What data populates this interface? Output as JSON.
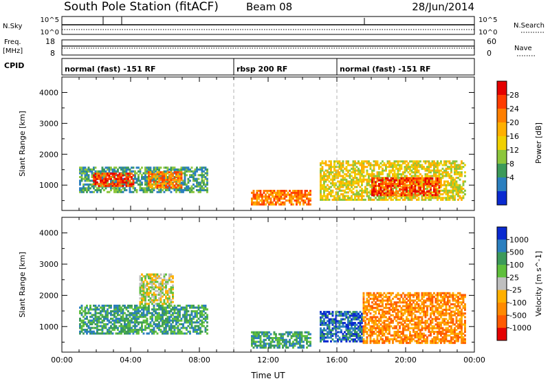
{
  "header": {
    "station": "South Pole Station (fitACF)",
    "beam": "Beam 08",
    "date": "28/Jun/2014"
  },
  "top_panels": {
    "nsky_label": "N.Sky",
    "nsearch_label": "N.Search",
    "nsky_ticks": [
      "10^5",
      "10^0"
    ],
    "nsearch_ticks": [
      "10^5",
      "10^0"
    ],
    "freq_label": "Freq.",
    "freq_unit": "[MHz]",
    "freq_ticks": [
      "18",
      "8"
    ],
    "nave_label": "Nave",
    "nave_ticks": [
      "60",
      "0"
    ],
    "cpid_label": "CPID",
    "cpid_segments": [
      {
        "label": "normal (fast) -151 RF",
        "start_h": 0,
        "end_h": 10
      },
      {
        "label": "rbsp 200 RF",
        "start_h": 10,
        "end_h": 16
      },
      {
        "label": "normal (fast) -151 RF",
        "start_h": 16,
        "end_h": 24
      }
    ]
  },
  "chart_data": [
    {
      "type": "heatmap",
      "name": "power",
      "ylabel": "Slant Range [km]",
      "xlabel": "",
      "colorbar_label": "Power [dB]",
      "colorbar_ticks": [
        "28",
        "24",
        "20",
        "16",
        "12",
        "8",
        "4"
      ],
      "colorbar_colors": [
        "#e40000",
        "#ff3c00",
        "#ff7f00",
        "#ffb000",
        "#f0d000",
        "#8cc63c",
        "#3c9a5a",
        "#2b7fbf",
        "#0a2ad0"
      ],
      "ylim": [
        180,
        4500
      ],
      "yticks": [
        "1000",
        "2000",
        "3000",
        "4000"
      ],
      "xlim": [
        0,
        24
      ],
      "vlines_h": [
        10,
        16
      ],
      "regions": [
        {
          "t0": 1.0,
          "t1": 8.5,
          "r0": 750,
          "r1": 1600,
          "level": 6
        },
        {
          "t0": 1.8,
          "t1": 4.2,
          "r0": 950,
          "r1": 1400,
          "level": 1
        },
        {
          "t0": 5.0,
          "t1": 7.0,
          "r0": 900,
          "r1": 1450,
          "level": 2
        },
        {
          "t0": 11.0,
          "t1": 14.5,
          "r0": 350,
          "r1": 850,
          "level": 2
        },
        {
          "t0": 15.0,
          "t1": 23.5,
          "r0": 500,
          "r1": 1800,
          "level": 4
        },
        {
          "t0": 18.0,
          "t1": 22.0,
          "r0": 650,
          "r1": 1250,
          "level": 1
        }
      ]
    },
    {
      "type": "heatmap",
      "name": "velocity",
      "ylabel": "Slant Range [km]",
      "xlabel": "Time UT",
      "colorbar_label": "Velocity [m s^-1]",
      "colorbar_ticks": [
        "1000",
        "500",
        "100",
        "25",
        "-25",
        "-100",
        "-500",
        "-1000"
      ],
      "colorbar_colors": [
        "#0a2ad0",
        "#2b7fbf",
        "#3c9a5a",
        "#5fbf3c",
        "#bfbfbf",
        "#ffb000",
        "#ff8a00",
        "#ff5a00",
        "#e40000"
      ],
      "ylim": [
        180,
        4500
      ],
      "yticks": [
        "1000",
        "2000",
        "3000",
        "4000"
      ],
      "xlim": [
        0,
        24
      ],
      "xticks": [
        "00:00",
        "04:00",
        "08:00",
        "12:00",
        "16:00",
        "20:00",
        "00:00"
      ],
      "vlines_h": [
        10,
        16
      ],
      "regions": [
        {
          "t0": 1.0,
          "t1": 8.5,
          "r0": 750,
          "r1": 1700,
          "level": 2
        },
        {
          "t0": 4.5,
          "t1": 6.5,
          "r0": 1700,
          "r1": 2700,
          "level": 4
        },
        {
          "t0": 11.0,
          "t1": 14.5,
          "r0": 300,
          "r1": 850,
          "level": 2
        },
        {
          "t0": 15.0,
          "t1": 17.5,
          "r0": 500,
          "r1": 1500,
          "level": 1
        },
        {
          "t0": 17.5,
          "t1": 23.5,
          "r0": 450,
          "r1": 2100,
          "level": 6
        }
      ]
    }
  ]
}
